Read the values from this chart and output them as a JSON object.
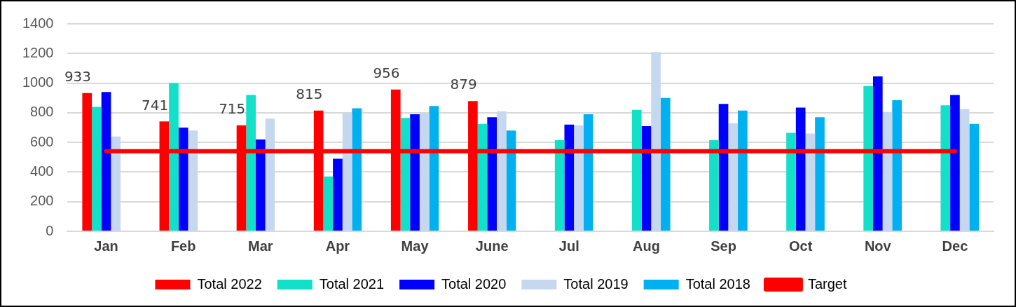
{
  "chart_data": {
    "type": "bar",
    "categories": [
      "Jan",
      "Feb",
      "Mar",
      "Apr",
      "May",
      "June",
      "Jul",
      "Aug",
      "Sep",
      "Oct",
      "Nov",
      "Dec"
    ],
    "series": [
      {
        "name": "Total 2022",
        "color": "#ff0000",
        "values": [
          933,
          741,
          715,
          815,
          956,
          879,
          null,
          null,
          null,
          null,
          null,
          null
        ],
        "value_labels": [
          "933",
          "741",
          "715",
          "815",
          "956",
          "879",
          null,
          null,
          null,
          null,
          null,
          null
        ]
      },
      {
        "name": "Total 2021",
        "color": "#12e0c8",
        "values": [
          840,
          1000,
          920,
          370,
          765,
          725,
          615,
          820,
          615,
          665,
          980,
          850
        ]
      },
      {
        "name": "Total 2020",
        "color": "#0000ff",
        "values": [
          940,
          700,
          620,
          490,
          790,
          770,
          720,
          710,
          860,
          835,
          1045,
          920
        ]
      },
      {
        "name": "Total 2019",
        "color": "#c6d8f0",
        "values": [
          640,
          680,
          760,
          800,
          800,
          810,
          715,
          1210,
          730,
          660,
          805,
          825
        ]
      },
      {
        "name": "Total 2018",
        "color": "#00b0f0",
        "values": [
          null,
          null,
          null,
          830,
          845,
          680,
          790,
          900,
          815,
          770,
          885,
          725
        ]
      },
      {
        "name": "Target",
        "type": "line",
        "color": "#ff0000",
        "values": [
          540,
          540,
          540,
          540,
          540,
          540,
          540,
          540,
          540,
          540,
          540,
          540
        ]
      }
    ],
    "ylim": [
      0,
      1400
    ],
    "yticks": [
      0,
      200,
      400,
      600,
      800,
      1000,
      1200,
      1400
    ],
    "grid": "y",
    "legend": "bottom",
    "marker": "none"
  }
}
